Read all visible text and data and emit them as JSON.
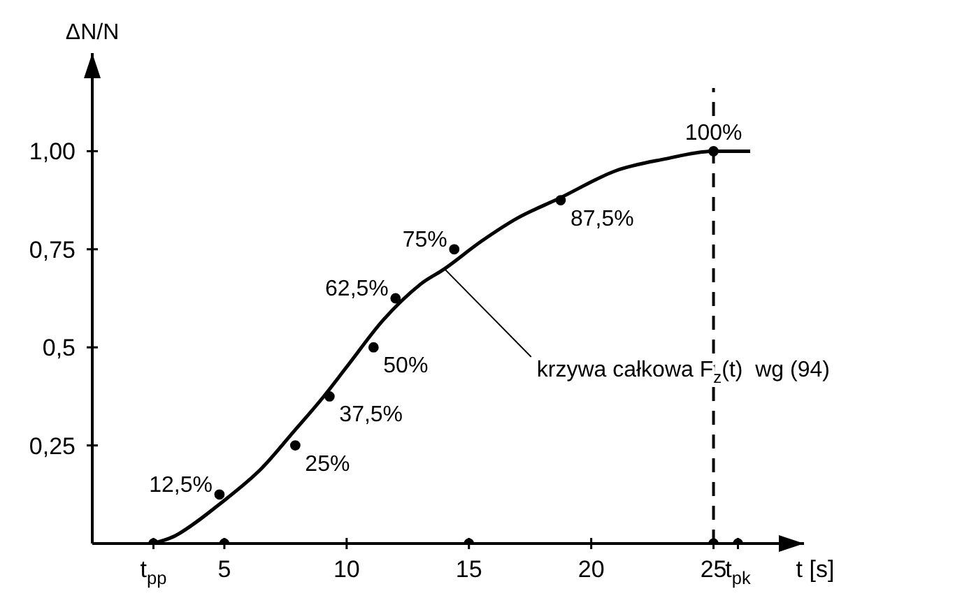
{
  "chart_data": {
    "type": "line",
    "xlabel": "t [s]",
    "ylabel": "ΔN/N",
    "xlim": [
      -0.4,
      28.7
    ],
    "ylim": [
      0,
      1.25
    ],
    "xticks": [
      {
        "value": 2.1,
        "label": "t$_{pp}$"
      },
      5,
      10,
      15,
      20,
      25,
      {
        "value": 26,
        "label": "t$_{pk}$"
      }
    ],
    "yticks": [
      {
        "value": 0.25,
        "label": "0,25"
      },
      {
        "value": 0.5,
        "label": "0,5"
      },
      {
        "value": 0.75,
        "label": "0,75"
      },
      {
        "value": 1,
        "label": "1,00"
      }
    ],
    "ref_lines": [
      {
        "axis": "x",
        "value": 25,
        "color": "#000000",
        "line_style": "dashed"
      }
    ],
    "annotations": [
      {
        "text": "krzywa całkowa F$_{z}$(t)  wg (94)",
        "x": 14,
        "y": 0.7
      }
    ],
    "series": [
      {
        "type": "line",
        "color": "#000000",
        "marker": "none",
        "line_style": "solid",
        "x": [
          2.1,
          3,
          5,
          6.5,
          7.9,
          9,
          10,
          11.5,
          13,
          14,
          15.5,
          17,
          18.7,
          21,
          23,
          25,
          26.5
        ],
        "values": [
          0,
          0.02,
          0.11,
          0.19,
          0.29,
          0.37,
          0.45,
          0.57,
          0.66,
          0.7,
          0.77,
          0.83,
          0.88,
          0.95,
          0.98,
          1.0,
          1.0
        ]
      },
      {
        "type": "scatter",
        "color": "#000000",
        "marker": "circle",
        "x": [
          4.8,
          7.9,
          9.3,
          11.1,
          12.0,
          14.4,
          18.75,
          25
        ],
        "values": [
          0.125,
          0.25,
          0.375,
          0.5,
          0.625,
          0.75,
          0.875,
          1.0
        ],
        "value_labels": [
          "12,5%",
          "25%",
          "37,5%",
          "50%",
          "62,5%",
          "75%",
          "87,5%",
          "100%"
        ]
      },
      {
        "type": "scatter",
        "color": "#000000",
        "marker": "circle",
        "x": [
          2.1,
          5,
          15,
          25,
          26
        ],
        "values": [
          0,
          0,
          0,
          0,
          0
        ]
      }
    ]
  }
}
